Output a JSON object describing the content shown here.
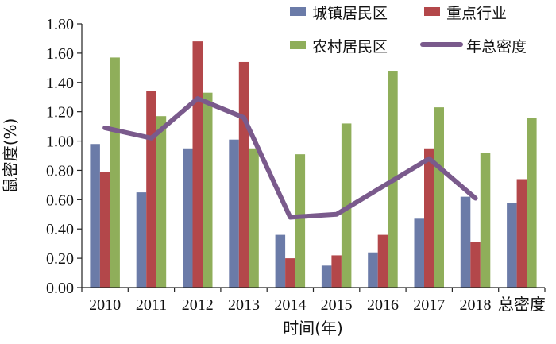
{
  "chart_data": {
    "type": "bar",
    "categories": [
      "2010",
      "2011",
      "2012",
      "2013",
      "2014",
      "2015",
      "2016",
      "2017",
      "2018",
      "总密度"
    ],
    "series": [
      {
        "name": "城镇居民区",
        "color": "#6b7ba8",
        "values": [
          0.98,
          0.65,
          0.95,
          1.01,
          0.36,
          0.15,
          0.24,
          0.47,
          0.62,
          0.58
        ]
      },
      {
        "name": "重点行业",
        "color": "#b3474a",
        "values": [
          0.79,
          1.34,
          1.68,
          1.54,
          0.2,
          0.22,
          0.36,
          0.95,
          0.31,
          0.74
        ]
      },
      {
        "name": "农村居民区",
        "color": "#8fae5a",
        "values": [
          1.57,
          1.17,
          1.33,
          0.95,
          0.91,
          1.12,
          1.48,
          1.23,
          0.92,
          1.16
        ]
      }
    ],
    "line_series": {
      "name": "年总密度",
      "color": "#7a5a8c",
      "values": [
        1.09,
        1.02,
        1.29,
        1.16,
        0.48,
        0.5,
        0.69,
        0.88,
        0.61
      ]
    },
    "xlabel": "时间(年)",
    "ylabel": "鼠密度(%)",
    "ylim": [
      0,
      1.8
    ],
    "yticks": [
      "0.00",
      "0.20",
      "0.40",
      "0.60",
      "0.80",
      "1.00",
      "1.20",
      "1.40",
      "1.60",
      "1.80"
    ],
    "grid": false,
    "legend_position": "top-right"
  }
}
